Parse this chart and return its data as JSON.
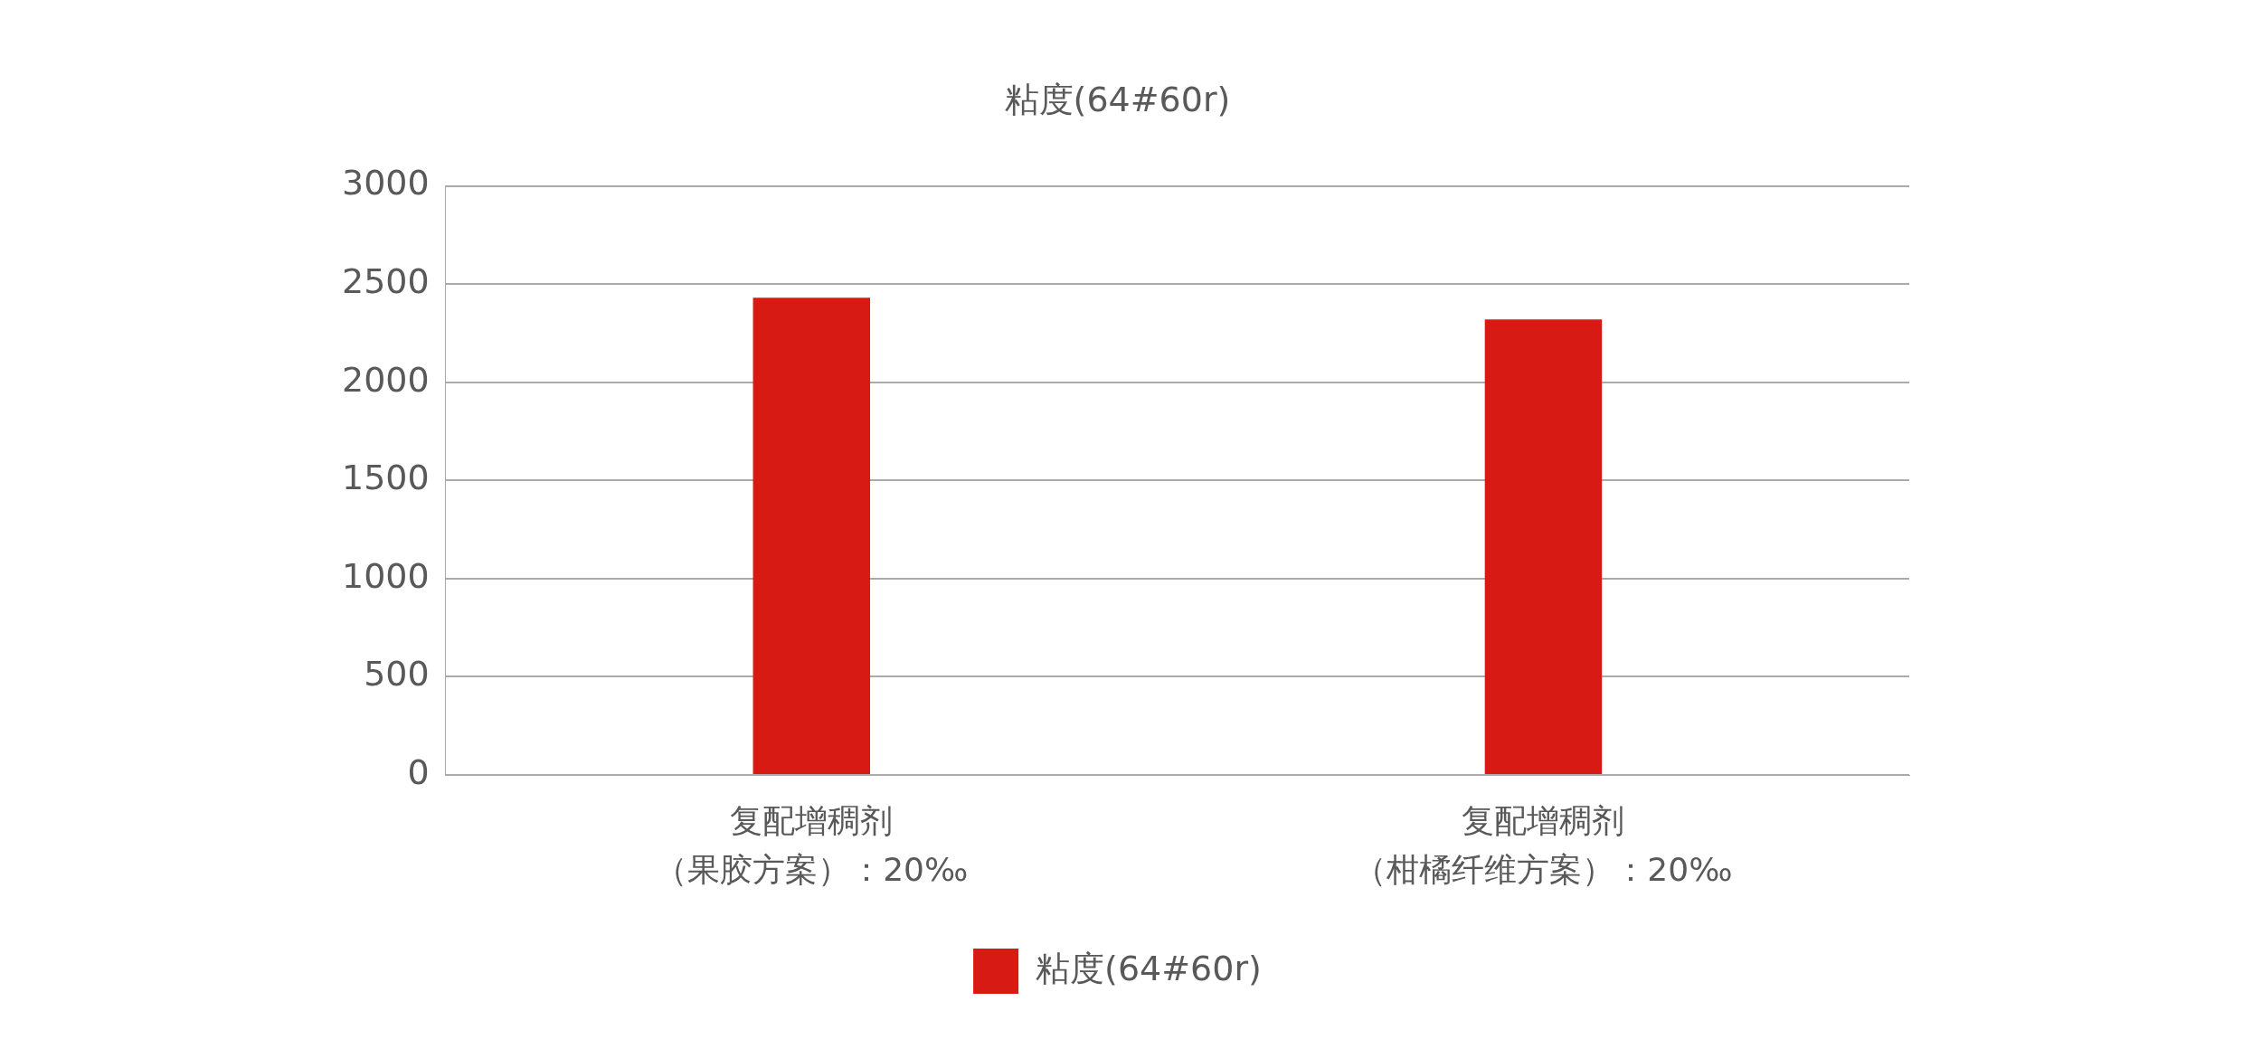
{
  "chart_data": {
    "type": "bar",
    "title": "粘度(64#60r)",
    "categories": [
      "复配增稠剂（果胶方案）：20‰",
      "复配增稠剂（柑橘纤维方案）：20‰"
    ],
    "series": [
      {
        "name": "粘度(64#60r)",
        "color": "#d81a14",
        "values": [
          2430,
          2320
        ]
      }
    ],
    "ylim": [
      0,
      3000
    ],
    "yticks": [
      0,
      500,
      1000,
      1500,
      2000,
      2500,
      3000
    ],
    "grid": "y",
    "legend": "bottom"
  }
}
